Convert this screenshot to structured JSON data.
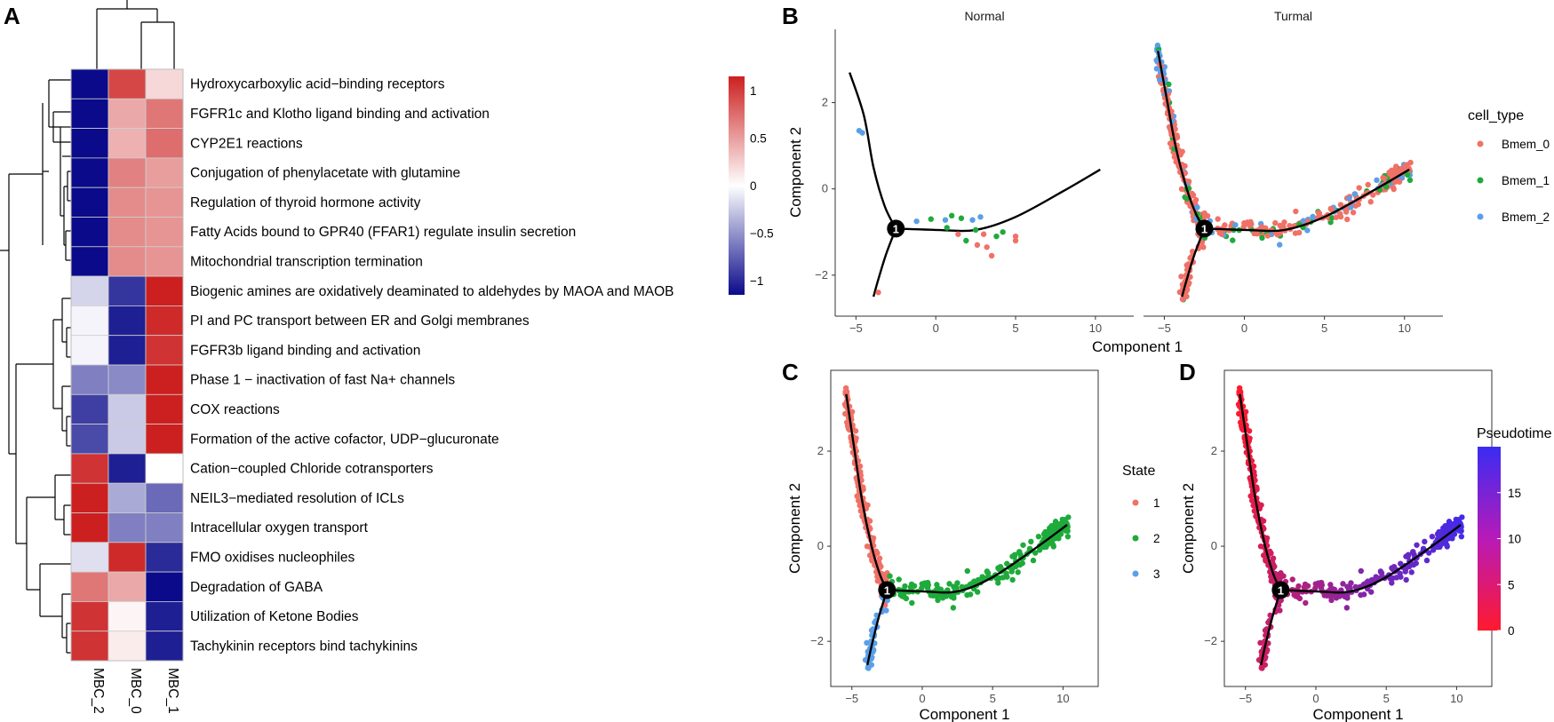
{
  "panels": {
    "A": "A",
    "B": "B",
    "C": "C",
    "D": "D"
  },
  "chart_data": [
    {
      "panel": "A",
      "type": "heatmap",
      "columns": [
        "MBC_2",
        "MBC_0",
        "MBC_1"
      ],
      "rows": [
        "Hydroxycarboxylic acid−binding receptors",
        "FGFR1c and Klotho ligand binding and activation",
        "CYP2E1 reactions",
        "Conjugation of phenylacetate with glutamine",
        "Regulation of thyroid hormone activity",
        "Fatty Acids bound to GPR40 (FFAR1) regulate insulin secretion",
        "Mitochondrial transcription termination",
        "Biogenic amines are oxidatively deaminated to aldehydes by MAOA and MAOB",
        "PI and PC transport between ER and Golgi membranes",
        "FGFR3b ligand binding and activation",
        "Phase 1 − inactivation of fast Na+ channels",
        "COX reactions",
        "Formation of the active cofactor, UDP−glucuronate",
        "Cation−coupled Chloride cotransporters",
        "NEIL3−mediated resolution of ICLs",
        "Intracellular oxygen transport",
        "FMO oxidises nucleophiles",
        "Degradation of GABA",
        "Utilization of Ketone Bodies",
        "Tachykinin receptors bind tachykinins"
      ],
      "values": [
        [
          -1.15,
          0.95,
          0.2
        ],
        [
          -1.15,
          0.45,
          0.7
        ],
        [
          -1.15,
          0.4,
          0.75
        ],
        [
          -1.15,
          0.65,
          0.5
        ],
        [
          -1.15,
          0.6,
          0.55
        ],
        [
          -1.15,
          0.6,
          0.55
        ],
        [
          -1.15,
          0.6,
          0.55
        ],
        [
          -0.2,
          -0.95,
          1.15
        ],
        [
          -0.05,
          -1.05,
          1.1
        ],
        [
          -0.05,
          -1.05,
          1.05
        ],
        [
          -0.6,
          -0.55,
          1.15
        ],
        [
          -0.9,
          -0.25,
          1.15
        ],
        [
          -0.85,
          -0.25,
          1.15
        ],
        [
          1.05,
          -1.05,
          0.0
        ],
        [
          1.15,
          -0.4,
          -0.7
        ],
        [
          1.15,
          -0.6,
          -0.6
        ],
        [
          -0.15,
          1.1,
          -1.0
        ],
        [
          0.7,
          0.45,
          -1.2
        ],
        [
          1.05,
          0.05,
          -1.05
        ],
        [
          1.05,
          0.1,
          -1.05
        ]
      ],
      "colorbar": {
        "ticks": [
          "1",
          "0.5",
          "0",
          "−0.5",
          "−1"
        ],
        "range": [
          -1.15,
          1.15
        ],
        "low": "#0a0a8a",
        "mid": "#ffffff",
        "high": "#cc2020"
      }
    },
    {
      "panel": "B",
      "type": "scatter",
      "facets": [
        "Normal",
        "Turmal"
      ],
      "xlabel": "Component 1",
      "ylabel": "Component 2",
      "xticks": [
        "−5",
        "0",
        "5",
        "10"
      ],
      "yticks": [
        "2",
        "0",
        "−2"
      ],
      "xlim": [
        -6.3,
        12.4
      ],
      "ylim": [
        -2.95,
        3.7
      ],
      "branch_point_label": "1",
      "legend": {
        "title": "cell_type",
        "items": [
          {
            "label": "Bmem_0",
            "color": "#f07167"
          },
          {
            "label": "Bmem_1",
            "color": "#1faa3c"
          },
          {
            "label": "Bmem_2",
            "color": "#5a9fe8"
          }
        ]
      }
    },
    {
      "panel": "C",
      "type": "scatter",
      "xlabel": "Component 1",
      "ylabel": "Component 2",
      "xticks": [
        "−5",
        "0",
        "5",
        "10"
      ],
      "yticks": [
        "2",
        "0",
        "−2"
      ],
      "xlim": [
        -6.5,
        12.5
      ],
      "ylim": [
        -2.95,
        3.7
      ],
      "branch_point_label": "1",
      "legend": {
        "title": "State",
        "items": [
          {
            "label": "1",
            "color": "#f07167"
          },
          {
            "label": "2",
            "color": "#1faa3c"
          },
          {
            "label": "3",
            "color": "#5a9fe8"
          }
        ]
      }
    },
    {
      "panel": "D",
      "type": "scatter",
      "xlabel": "Component 1",
      "ylabel": "Component 2",
      "xticks": [
        "−5",
        "0",
        "5",
        "10"
      ],
      "yticks": [
        "2",
        "0",
        "−2"
      ],
      "xlim": [
        -6.5,
        12.5
      ],
      "ylim": [
        -2.95,
        3.7
      ],
      "branch_point_label": "1",
      "legend": {
        "title": "Pseudotime",
        "ticks": [
          "15",
          "10",
          "5",
          "0"
        ],
        "range": [
          0,
          20
        ],
        "low": "#ff1a2e",
        "high": "#3a2cf2"
      }
    }
  ],
  "trajectory": {
    "branch_point": [
      -2.5,
      -0.92
    ],
    "upper_branch": [
      [
        -2.5,
        -0.92
      ],
      [
        -3.0,
        -0.6
      ],
      [
        -3.6,
        0.0
      ],
      [
        -4.3,
        1.0
      ],
      [
        -4.9,
        2.2
      ],
      [
        -5.4,
        3.2
      ]
    ],
    "lower_branch": [
      [
        -2.5,
        -0.92
      ],
      [
        -3.1,
        -1.5
      ],
      [
        -3.6,
        -2.1
      ],
      [
        -3.9,
        -2.5
      ]
    ],
    "main_branch": [
      [
        -2.5,
        -0.92
      ],
      [
        0.0,
        -0.95
      ],
      [
        2.5,
        -0.95
      ],
      [
        5.0,
        -0.65
      ],
      [
        8.0,
        -0.05
      ],
      [
        10.3,
        0.45
      ]
    ],
    "normal_upper": [
      [
        -2.5,
        -0.92
      ],
      [
        -3.2,
        -0.4
      ],
      [
        -3.9,
        0.5
      ],
      [
        -4.5,
        1.7
      ],
      [
        -5.4,
        2.7
      ]
    ]
  }
}
